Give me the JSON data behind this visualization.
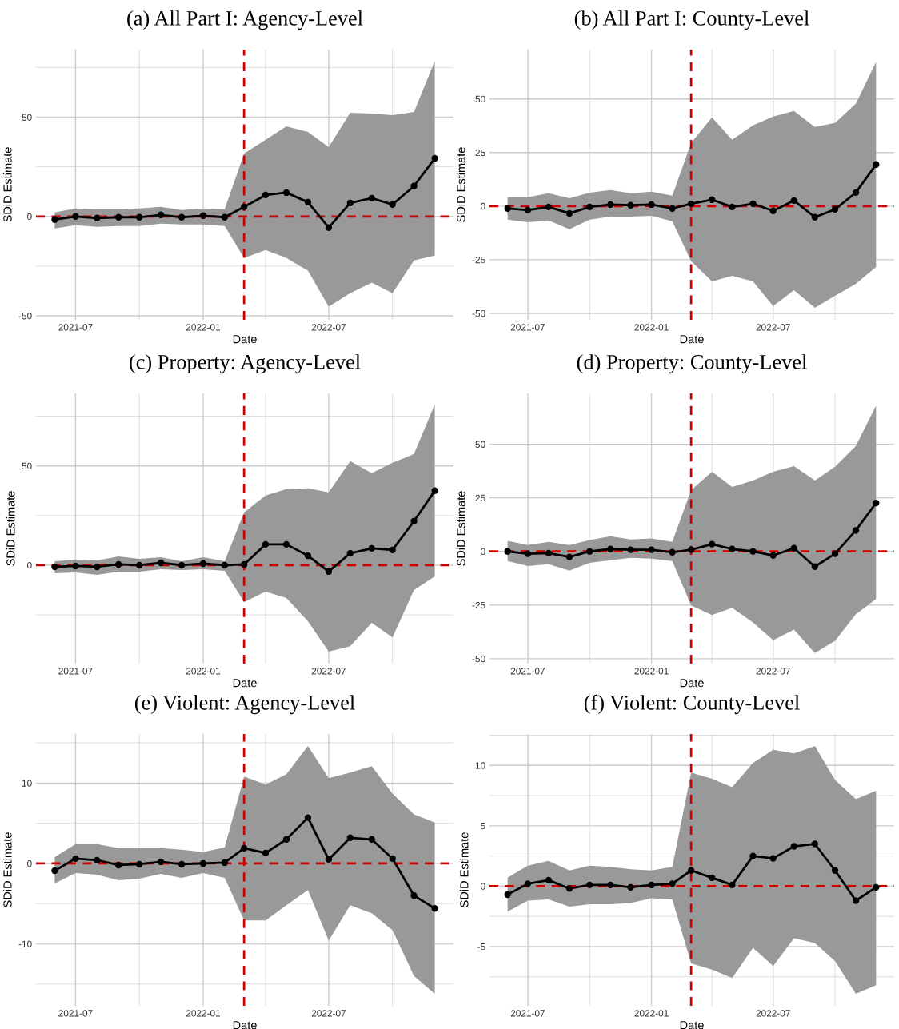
{
  "chart_data": [
    {
      "type": "line",
      "title": "(a) All Part I: Agency-Level",
      "xlabel": "Date",
      "ylabel": "SDiD Estimate",
      "marker": "circle",
      "grid": true,
      "x": [
        "2021-06",
        "2021-07",
        "2021-08",
        "2021-09",
        "2021-10",
        "2021-11",
        "2021-12",
        "2022-01",
        "2022-02",
        "2022-03",
        "2022-04",
        "2022-05",
        "2022-06",
        "2022-07",
        "2022-08",
        "2022-09",
        "2022-10",
        "2022-11",
        "2022-12"
      ],
      "series": [
        {
          "color": "#000000",
          "values": [
            -1.6,
            0,
            -0.8,
            -0.4,
            -0.4,
            0.8,
            -0.4,
            0.4,
            -0.4,
            4.8,
            10.8,
            12.0,
            7.2,
            -5.6,
            6.8,
            9.2,
            6.0,
            15.3,
            29.3
          ],
          "upper": [
            2.0,
            4.0,
            3.6,
            3.6,
            4.0,
            4.8,
            3.2,
            4.0,
            3.6,
            31.7,
            38.6,
            45.4,
            42.6,
            34.9,
            52.2,
            51.8,
            51.0,
            52.6,
            78.3
          ],
          "lower": [
            -6.0,
            -4.4,
            -5.2,
            -4.8,
            -4.8,
            -3.6,
            -4.0,
            -4.0,
            -4.8,
            -20.9,
            -16.9,
            -20.9,
            -27.3,
            -45.4,
            -38.6,
            -33.3,
            -38.6,
            -22.1,
            -19.7
          ]
        }
      ],
      "xlim": [
        "2021-05-05",
        "2022-12-28"
      ],
      "xticks": [
        "2021-07",
        {
          "value": "2021-10",
          "label": null
        },
        "2022-01",
        {
          "value": "2022-04",
          "label": null
        },
        "2022-07",
        {
          "value": "2022-10",
          "label": null
        }
      ],
      "ylim": [
        -52,
        84
      ],
      "yticks": [
        -50,
        {
          "value": -25,
          "label": null
        },
        0,
        {
          "value": 25,
          "label": null
        },
        50,
        {
          "value": 75,
          "label": null
        }
      ],
      "ref_lines": [
        {
          "axis": "x",
          "value": "2022-03",
          "color": "#cc0000",
          "line_style": "dashed"
        },
        {
          "axis": "y",
          "value": 0,
          "color": "#cc0000",
          "line_style": "dashed"
        }
      ]
    },
    {
      "type": "line",
      "title": "(b) All Part I: County-Level",
      "xlabel": "Date",
      "ylabel": "SDiD Estimate",
      "marker": "circle",
      "grid": true,
      "x": [
        "2021-06",
        "2021-07",
        "2021-08",
        "2021-09",
        "2021-10",
        "2021-11",
        "2021-12",
        "2022-01",
        "2022-02",
        "2022-03",
        "2022-04",
        "2022-05",
        "2022-06",
        "2022-07",
        "2022-08",
        "2022-09",
        "2022-10",
        "2022-11",
        "2022-12"
      ],
      "series": [
        {
          "color": "#000000",
          "values": [
            -1.1,
            -1.9,
            -0.4,
            -3.4,
            -0.4,
            0.7,
            0.4,
            0.7,
            -1.1,
            1.1,
            3.0,
            -0.4,
            1.1,
            -2.2,
            2.6,
            -5.2,
            -1.5,
            6.3,
            19.4
          ],
          "upper": [
            4.1,
            4.1,
            6.0,
            3.7,
            6.3,
            7.5,
            6.0,
            6.7,
            4.9,
            29.5,
            41.4,
            31.0,
            37.7,
            41.8,
            44.4,
            36.9,
            38.8,
            47.8,
            67.2
          ],
          "lower": [
            -6.3,
            -7.5,
            -6.7,
            -10.8,
            -6.3,
            -4.9,
            -4.9,
            -4.5,
            -7.1,
            -25.7,
            -35.1,
            -32.5,
            -35.1,
            -46.6,
            -39.2,
            -47.4,
            -41.8,
            -36.2,
            -28.4
          ]
        }
      ],
      "xlim": [
        "2021-05-05",
        "2022-12-28"
      ],
      "xticks": [
        "2021-07",
        {
          "value": "2021-10",
          "label": null
        },
        "2022-01",
        {
          "value": "2022-04",
          "label": null
        },
        "2022-07",
        {
          "value": "2022-10",
          "label": null
        }
      ],
      "ylim": [
        -53,
        73
      ],
      "yticks": [
        -50,
        -25,
        0,
        25,
        50
      ],
      "ref_lines": [
        {
          "axis": "x",
          "value": "2022-03",
          "color": "#cc0000",
          "line_style": "dashed"
        },
        {
          "axis": "y",
          "value": 0,
          "color": "#cc0000",
          "line_style": "dashed"
        }
      ]
    },
    {
      "type": "line",
      "title": "(c) Property: Agency-Level",
      "xlabel": "Date",
      "ylabel": "SDiD Estimate",
      "marker": "circle",
      "grid": true,
      "x": [
        "2021-06",
        "2021-07",
        "2021-08",
        "2021-09",
        "2021-10",
        "2021-11",
        "2021-12",
        "2022-01",
        "2022-02",
        "2022-03",
        "2022-04",
        "2022-05",
        "2022-06",
        "2022-07",
        "2022-08",
        "2022-09",
        "2022-10",
        "2022-11",
        "2022-12"
      ],
      "series": [
        {
          "color": "#000000",
          "values": [
            -0.8,
            -0.4,
            -0.8,
            0.4,
            0,
            1.2,
            0,
            0.8,
            0,
            0.4,
            10.5,
            10.5,
            4.8,
            -3.2,
            6.0,
            8.5,
            7.7,
            22.2,
            37.5
          ],
          "upper": [
            2.0,
            2.8,
            2.4,
            4.4,
            3.2,
            4.0,
            2.0,
            4.0,
            2.0,
            26.6,
            35.1,
            38.3,
            38.7,
            36.7,
            52.4,
            46.4,
            51.6,
            56.0,
            81.0
          ],
          "lower": [
            -4.0,
            -3.6,
            -4.8,
            -3.2,
            -3.2,
            -2.0,
            -2.4,
            -2.0,
            -2.8,
            -18.5,
            -13.3,
            -16.5,
            -28.2,
            -43.5,
            -40.7,
            -29.0,
            -36.3,
            -12.5,
            -5.6
          ]
        }
      ],
      "xlim": [
        "2021-05-05",
        "2022-12-28"
      ],
      "xticks": [
        "2021-07",
        {
          "value": "2021-10",
          "label": null
        },
        "2022-01",
        {
          "value": "2022-04",
          "label": null
        },
        "2022-07",
        {
          "value": "2022-10",
          "label": null
        }
      ],
      "ylim": [
        -49.5,
        86.5
      ],
      "yticks": [
        {
          "value": -25,
          "label": null
        },
        0,
        {
          "value": 25,
          "label": null
        },
        50,
        {
          "value": 75,
          "label": null
        }
      ],
      "ref_lines": [
        {
          "axis": "x",
          "value": "2022-03",
          "color": "#cc0000",
          "line_style": "dashed"
        },
        {
          "axis": "y",
          "value": 0,
          "color": "#cc0000",
          "line_style": "dashed"
        }
      ]
    },
    {
      "type": "line",
      "title": "(d) Property: County-Level",
      "xlabel": "Date",
      "ylabel": "SDiD Estimate",
      "marker": "circle",
      "grid": true,
      "x": [
        "2021-06",
        "2021-07",
        "2021-08",
        "2021-09",
        "2021-10",
        "2021-11",
        "2021-12",
        "2022-01",
        "2022-02",
        "2022-03",
        "2022-04",
        "2022-05",
        "2022-06",
        "2022-07",
        "2022-08",
        "2022-09",
        "2022-10",
        "2022-11",
        "2022-12"
      ],
      "series": [
        {
          "color": "#000000",
          "values": [
            0,
            -1.1,
            -0.8,
            -2.6,
            0,
            1.1,
            0.8,
            0.8,
            -0.4,
            0.8,
            3.4,
            1.1,
            0,
            -1.9,
            1.5,
            -7.1,
            -1.1,
            9.8,
            22.6
          ],
          "upper": [
            4.9,
            3.0,
            4.5,
            3.0,
            5.3,
            7.1,
            5.6,
            6.0,
            4.5,
            28.6,
            37.2,
            30.1,
            33.1,
            37.2,
            39.8,
            33.1,
            39.5,
            49.2,
            68.0
          ],
          "lower": [
            -4.5,
            -6.8,
            -6.0,
            -9.0,
            -5.3,
            -4.1,
            -3.0,
            -3.4,
            -4.5,
            -25.2,
            -29.7,
            -26.3,
            -33.1,
            -41.4,
            -36.5,
            -47.4,
            -41.7,
            -29.3,
            -22.2
          ]
        }
      ],
      "xlim": [
        "2021-05-05",
        "2022-12-28"
      ],
      "xticks": [
        "2021-07",
        {
          "value": "2021-10",
          "label": null
        },
        "2022-01",
        {
          "value": "2022-04",
          "label": null
        },
        "2022-07",
        {
          "value": "2022-10",
          "label": null
        }
      ],
      "ylim": [
        -52.3,
        73.7
      ],
      "yticks": [
        -50,
        -25,
        0,
        25,
        50
      ],
      "ref_lines": [
        {
          "axis": "x",
          "value": "2022-03",
          "color": "#cc0000",
          "line_style": "dashed"
        },
        {
          "axis": "y",
          "value": 0,
          "color": "#cc0000",
          "line_style": "dashed"
        }
      ]
    },
    {
      "type": "line",
      "title": "(e) Violent: Agency-Level",
      "xlabel": "Date",
      "ylabel": "SDiD Estimate",
      "marker": "circle",
      "grid": true,
      "x": [
        "2021-06",
        "2021-07",
        "2021-08",
        "2021-09",
        "2021-10",
        "2021-11",
        "2021-12",
        "2022-01",
        "2022-02",
        "2022-03",
        "2022-04",
        "2022-05",
        "2022-06",
        "2022-07",
        "2022-08",
        "2022-09",
        "2022-10",
        "2022-11",
        "2022-12"
      ],
      "series": [
        {
          "color": "#000000",
          "values": [
            -0.9,
            0.6,
            0.4,
            -0.2,
            -0.1,
            0.2,
            -0.1,
            0,
            0.1,
            1.9,
            1.3,
            3.0,
            5.7,
            0.5,
            3.2,
            3.0,
            0.6,
            -4.0,
            -5.6
          ],
          "upper": [
            0.8,
            2.4,
            2.4,
            1.9,
            1.9,
            1.9,
            1.7,
            1.4,
            2.0,
            10.8,
            9.8,
            11.1,
            14.6,
            10.6,
            11.3,
            12.1,
            8.7,
            6.1,
            5.1
          ],
          "lower": [
            -2.5,
            -1.2,
            -1.4,
            -2.1,
            -1.9,
            -1.3,
            -1.8,
            -1.2,
            -1.8,
            -7.1,
            -7.1,
            -5.2,
            -3.3,
            -9.6,
            -5.2,
            -6.2,
            -8.3,
            -14.0,
            -16.2
          ]
        }
      ],
      "xlim": [
        "2021-05-05",
        "2022-12-28"
      ],
      "xticks": [
        "2021-07",
        {
          "value": "2021-10",
          "label": null
        },
        "2022-01",
        {
          "value": "2022-04",
          "label": null
        },
        "2022-07",
        {
          "value": "2022-10",
          "label": null
        }
      ],
      "ylim": [
        -17.7,
        16.1
      ],
      "yticks": [
        {
          "value": -15,
          "label": null
        },
        -10,
        {
          "value": -5,
          "label": null
        },
        0,
        {
          "value": 5,
          "label": null
        },
        10,
        {
          "value": 15,
          "label": null
        }
      ],
      "ref_lines": [
        {
          "axis": "x",
          "value": "2022-03",
          "color": "#cc0000",
          "line_style": "dashed"
        },
        {
          "axis": "y",
          "value": 0,
          "color": "#cc0000",
          "line_style": "dashed"
        }
      ]
    },
    {
      "type": "line",
      "title": "(f) Violent: County-Level",
      "xlabel": "Date",
      "ylabel": "SDiD Estimate",
      "marker": "circle",
      "grid": true,
      "x": [
        "2021-06",
        "2021-07",
        "2021-08",
        "2021-09",
        "2021-10",
        "2021-11",
        "2021-12",
        "2022-01",
        "2022-02",
        "2022-03",
        "2022-04",
        "2022-05",
        "2022-06",
        "2022-07",
        "2022-08",
        "2022-09",
        "2022-10",
        "2022-11",
        "2022-12"
      ],
      "series": [
        {
          "color": "#000000",
          "values": [
            -0.7,
            0.2,
            0.5,
            -0.2,
            0.1,
            0.1,
            -0.1,
            0.1,
            0.2,
            1.3,
            0.7,
            0.1,
            2.5,
            2.3,
            3.3,
            3.5,
            1.3,
            -1.2,
            -0.1
          ],
          "upper": [
            0.7,
            1.7,
            2.1,
            1.3,
            1.7,
            1.6,
            1.4,
            1.3,
            1.6,
            9.4,
            8.9,
            8.2,
            10.2,
            11.3,
            11.0,
            11.6,
            8.8,
            7.2,
            7.9
          ],
          "lower": [
            -2.1,
            -1.2,
            -1.1,
            -1.7,
            -1.5,
            -1.5,
            -1.4,
            -1.0,
            -1.1,
            -6.4,
            -6.9,
            -7.6,
            -5.1,
            -6.6,
            -4.3,
            -4.7,
            -6.2,
            -8.9,
            -8.2
          ]
        }
      ],
      "xlim": [
        "2021-05-05",
        "2022-12-28"
      ],
      "xticks": [
        "2021-07",
        {
          "value": "2021-10",
          "label": null
        },
        "2022-01",
        {
          "value": "2022-04",
          "label": null
        },
        "2022-07",
        {
          "value": "2022-10",
          "label": null
        }
      ],
      "ylim": [
        -9.9,
        12.6
      ],
      "yticks": [
        {
          "value": -7.5,
          "label": null
        },
        -5,
        {
          "value": -2.5,
          "label": null
        },
        0,
        {
          "value": 2.5,
          "label": null
        },
        5,
        {
          "value": 7.5,
          "label": null
        },
        10,
        {
          "value": 12.5,
          "label": null
        }
      ],
      "ref_lines": [
        {
          "axis": "x",
          "value": "2022-03",
          "color": "#cc0000",
          "line_style": "dashed"
        },
        {
          "axis": "y",
          "value": 0,
          "color": "#cc0000",
          "line_style": "dashed"
        }
      ]
    }
  ]
}
